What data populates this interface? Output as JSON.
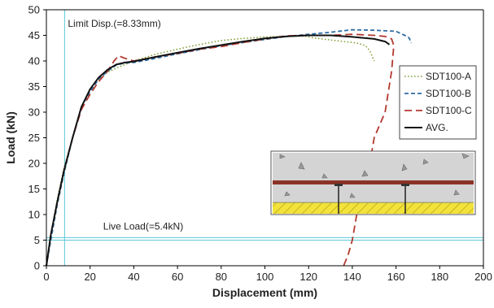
{
  "chart_data": {
    "type": "line",
    "title": "",
    "xlabel": "Displacement (mm)",
    "ylabel": "Load (kN)",
    "xlim": [
      0,
      200
    ],
    "ylim": [
      0,
      50
    ],
    "xticks": [
      0,
      20,
      40,
      60,
      80,
      100,
      120,
      140,
      160,
      180,
      200
    ],
    "yticks": [
      0,
      5,
      10,
      15,
      20,
      25,
      30,
      35,
      40,
      45,
      50
    ],
    "grid": false,
    "legend_position": "right",
    "series": [
      {
        "name": "SDT100-A",
        "color": "#7a9a2a",
        "dash": "dotted",
        "x": [
          0,
          2,
          5,
          8,
          12,
          16,
          20,
          24,
          28,
          32,
          36,
          40,
          50,
          60,
          70,
          80,
          90,
          100,
          110,
          118,
          122,
          126,
          132,
          138,
          142,
          146,
          148,
          150
        ],
        "y": [
          0,
          6,
          13,
          19,
          25,
          31,
          34.5,
          36.5,
          37.8,
          38.6,
          39.3,
          40,
          41.3,
          42.3,
          43.2,
          44,
          44.4,
          44.7,
          44.8,
          44.9,
          44.5,
          44.3,
          44,
          43.7,
          43.5,
          43,
          42,
          40
        ]
      },
      {
        "name": "SDT100-B",
        "color": "#2e6da4",
        "dash": "dashed",
        "x": [
          0,
          2,
          5,
          8,
          12,
          16,
          20,
          24,
          28,
          32,
          36,
          40,
          50,
          60,
          70,
          80,
          90,
          100,
          110,
          120,
          130,
          140,
          150,
          160,
          164,
          166,
          167
        ],
        "y": [
          0,
          5,
          12,
          18,
          25,
          31,
          34,
          36.5,
          38,
          39.2,
          39.6,
          39.7,
          40.5,
          41.4,
          42.2,
          43,
          43.6,
          44.2,
          44.8,
          45.2,
          45.6,
          46.1,
          46,
          45.8,
          45,
          44.5,
          43.5
        ]
      },
      {
        "name": "SDT100-C",
        "color": "#b23a30",
        "dash": "longdash",
        "x": [
          0,
          2,
          5,
          8,
          12,
          16,
          20,
          24,
          28,
          31,
          33,
          36,
          40,
          50,
          60,
          70,
          80,
          90,
          100,
          110,
          120,
          130,
          140,
          150,
          155,
          158,
          159,
          158,
          155,
          150,
          148,
          145,
          142,
          140,
          138,
          136
        ],
        "y": [
          0,
          6,
          12.5,
          18.5,
          25,
          30.5,
          33.5,
          36,
          38,
          40,
          41,
          40.5,
          40,
          40.8,
          41.5,
          42.3,
          42.8,
          43.6,
          44.3,
          44.9,
          45,
          45,
          45.2,
          45,
          44.8,
          44.3,
          43,
          38,
          30,
          25,
          20,
          15,
          10,
          5,
          2,
          0
        ]
      },
      {
        "name": "AVG.",
        "color": "#111111",
        "dash": "solid",
        "x": [
          0,
          2,
          5,
          8,
          12,
          16,
          20,
          24,
          28,
          32,
          36,
          40,
          50,
          60,
          70,
          80,
          90,
          100,
          110,
          120,
          130,
          140,
          145,
          150,
          155,
          157
        ],
        "y": [
          0,
          6,
          12.5,
          18.5,
          25,
          31,
          34.5,
          36.8,
          38.3,
          39.3,
          39.7,
          39.9,
          40.8,
          41.6,
          42.4,
          43.1,
          43.8,
          44.4,
          44.8,
          45,
          45,
          44.7,
          44.5,
          44.3,
          43.8,
          43.2
        ]
      }
    ],
    "annotations": {
      "limit_disp": {
        "label": "Limit Disp.(=8.33mm)",
        "x": 8.33,
        "color": "#5bc8d8"
      },
      "live_load": {
        "label": "Live Load(=5.4kN)",
        "y": 5.4,
        "color": "#5bc8d8"
      }
    }
  }
}
